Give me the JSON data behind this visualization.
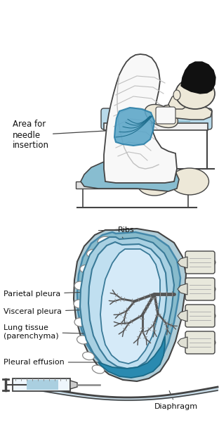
{
  "bg_color": "#ffffff",
  "light_blue": "#aacfe0",
  "med_blue": "#5aa5c8",
  "dark_blue": "#2a7fa8",
  "teal_blue": "#1e7a9a",
  "skin_color": "#ede8d8",
  "outline_color": "#444444",
  "label_color": "#111111",
  "shirt_color": "#f8f8f8",
  "pants_color": "#88bdd0",
  "pillow_color": "#b8daea",
  "stool_color": "#d8d8d8",
  "rib_fill": "#e0e0d5",
  "pleura_outer": "#a0cce0",
  "pleura_inner": "#c8e5f2",
  "lung_fill": "#d8eef8",
  "effusion_fill": "#2a8ab0",
  "spine_fill": "#e8e8e0",
  "labels_top": {
    "area_for_needle": "Area for\nneedle\ninsertion"
  },
  "labels_bottom": {
    "ribs": "Ribs",
    "parietal": "Parietal pleura",
    "visceral": "Visceral pleura",
    "lung_tissue": "Lung tissue\n(parenchyma)",
    "pleural": "Pleural effusion",
    "diaphragm": "Diaphragm"
  },
  "figsize": [
    3.12,
    6.07
  ],
  "dpi": 100
}
